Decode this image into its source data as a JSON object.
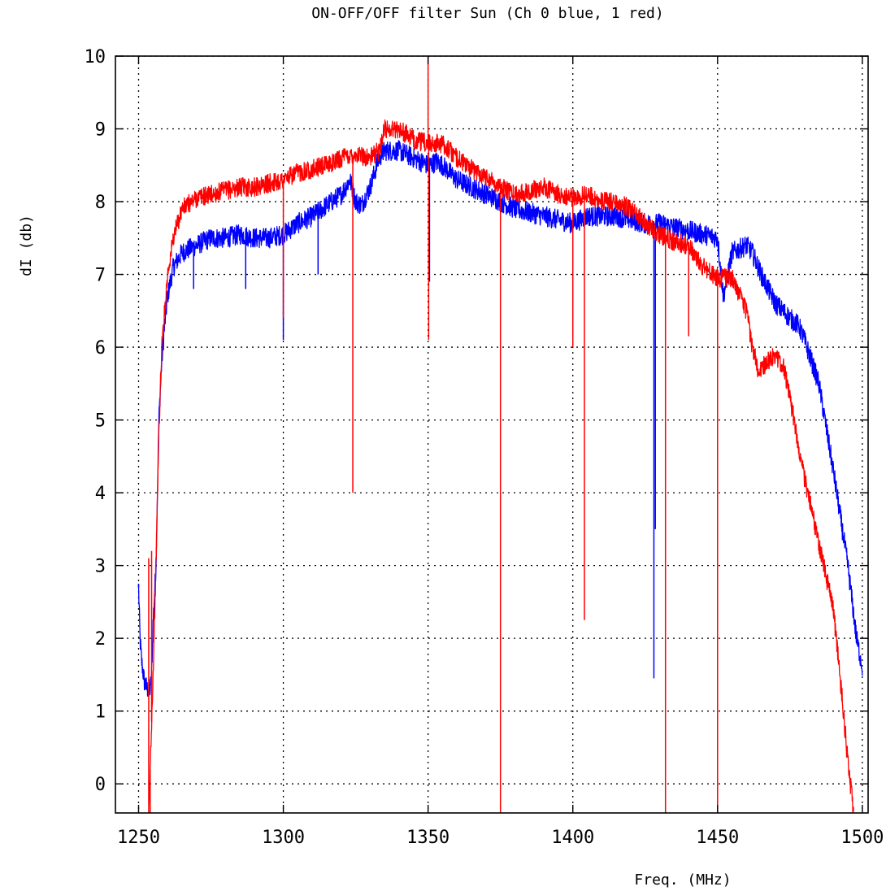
{
  "chart_data": {
    "type": "line",
    "title": "ON-OFF/OFF filter Sun (Ch 0 blue, 1 red)",
    "xlabel": "Freq. (MHz)",
    "ylabel": "dI (db)",
    "xlim": [
      1242,
      1502
    ],
    "ylim": [
      -0.4,
      10
    ],
    "xticks": [
      1250,
      1300,
      1350,
      1400,
      1450,
      1500
    ],
    "yticks": [
      0,
      1,
      2,
      3,
      4,
      5,
      6,
      7,
      8,
      9,
      10
    ],
    "grid": true,
    "colors": {
      "blue": "#0000ff",
      "red": "#ff0000",
      "grid": "#000000"
    },
    "series": [
      {
        "color": "#0000ff",
        "noise": 0.14,
        "x": [
          1250,
          1250.5,
          1251,
          1252,
          1253,
          1254,
          1254.5,
          1255,
          1256,
          1256.5,
          1257,
          1258,
          1259,
          1260,
          1262,
          1265,
          1270,
          1275,
          1280,
          1285,
          1290,
          1295,
          1300,
          1305,
          1310,
          1315,
          1320,
          1323,
          1325,
          1327,
          1330,
          1333,
          1335,
          1340,
          1345,
          1350,
          1353,
          1355,
          1360,
          1365,
          1370,
          1375,
          1380,
          1385,
          1390,
          1395,
          1400,
          1405,
          1410,
          1415,
          1420,
          1425,
          1430,
          1435,
          1440,
          1445,
          1450,
          1452,
          1455,
          1460,
          1462,
          1465,
          1470,
          1475,
          1478,
          1480,
          1485,
          1490,
          1495,
          1498,
          1500
        ],
        "y": [
          2.7,
          2.0,
          1.7,
          1.4,
          1.3,
          1.3,
          1.5,
          2.2,
          3.0,
          4.0,
          5.0,
          5.8,
          6.3,
          6.7,
          7.1,
          7.3,
          7.4,
          7.5,
          7.5,
          7.55,
          7.5,
          7.5,
          7.55,
          7.7,
          7.8,
          7.95,
          8.1,
          8.3,
          8.0,
          7.95,
          8.2,
          8.6,
          8.7,
          8.7,
          8.6,
          8.5,
          8.55,
          8.5,
          8.3,
          8.2,
          8.1,
          8.0,
          7.9,
          7.85,
          7.8,
          7.75,
          7.7,
          7.8,
          7.8,
          7.8,
          7.75,
          7.7,
          7.7,
          7.65,
          7.6,
          7.55,
          7.5,
          6.7,
          7.3,
          7.4,
          7.3,
          7.0,
          6.6,
          6.4,
          6.3,
          6.1,
          5.5,
          4.3,
          3.0,
          2.0,
          1.6
        ],
        "spikes": [
          [
            1250,
            2.75
          ],
          [
            1269,
            6.8
          ],
          [
            1287,
            6.8
          ],
          [
            1300,
            6.1
          ],
          [
            1312,
            7.0
          ],
          [
            1350.5,
            6.9
          ],
          [
            1428,
            1.45
          ],
          [
            1428.5,
            3.5
          ]
        ]
      },
      {
        "color": "#ff0000",
        "noise": 0.13,
        "x": [
          1253.5,
          1254,
          1255,
          1256,
          1257,
          1258,
          1259,
          1260,
          1262,
          1265,
          1270,
          1275,
          1280,
          1285,
          1290,
          1295,
          1300,
          1305,
          1310,
          1315,
          1320,
          1325,
          1330,
          1333,
          1335,
          1340,
          1345,
          1350,
          1355,
          1360,
          1365,
          1370,
          1375,
          1380,
          1385,
          1390,
          1395,
          1400,
          1405,
          1410,
          1415,
          1420,
          1425,
          1430,
          1435,
          1440,
          1445,
          1450,
          1455,
          1460,
          1462,
          1464,
          1466,
          1470,
          1473,
          1476,
          1480,
          1485,
          1490,
          1492,
          1493,
          1495,
          1497
        ],
        "y": [
          -0.4,
          0.2,
          1.5,
          3.0,
          4.8,
          6.0,
          6.5,
          7.0,
          7.5,
          7.9,
          8.05,
          8.1,
          8.15,
          8.2,
          8.2,
          8.25,
          8.3,
          8.4,
          8.45,
          8.5,
          8.6,
          8.65,
          8.6,
          8.7,
          9.0,
          9.0,
          8.85,
          8.8,
          8.8,
          8.6,
          8.45,
          8.35,
          8.2,
          8.1,
          8.15,
          8.2,
          8.1,
          8.05,
          8.1,
          8.0,
          8.0,
          7.9,
          7.7,
          7.55,
          7.45,
          7.4,
          7.1,
          6.95,
          6.95,
          6.5,
          6.0,
          5.7,
          5.75,
          5.9,
          5.7,
          5.1,
          4.2,
          3.3,
          2.4,
          1.6,
          1.2,
          0.3,
          -0.4
        ],
        "spikes": [
          [
            1253.5,
            3.1
          ],
          [
            1254.5,
            3.2
          ],
          [
            1254,
            -0.4
          ],
          [
            1300,
            6.4
          ],
          [
            1324,
            4.0
          ],
          [
            1350,
            10
          ],
          [
            1350.2,
            6.1
          ],
          [
            1375,
            -0.4
          ],
          [
            1400,
            6.0
          ],
          [
            1404,
            2.25
          ],
          [
            1432,
            -0.4
          ],
          [
            1440,
            6.15
          ],
          [
            1450,
            -0.4
          ]
        ]
      }
    ]
  }
}
